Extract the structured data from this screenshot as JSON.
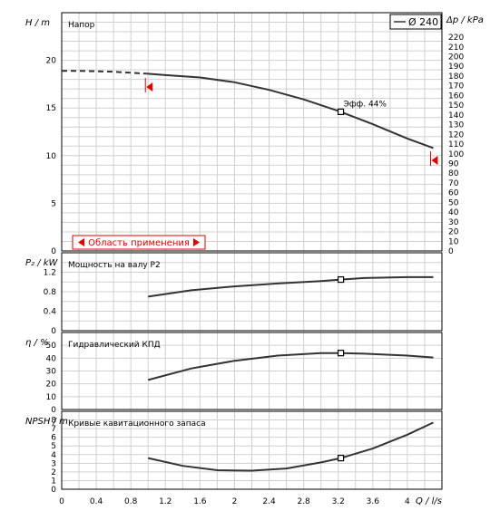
{
  "chart_data": [
    {
      "type": "line",
      "title": "Напор",
      "ylabel": "H / m",
      "y2label": "Δp / kPa",
      "legend": "Ø 240",
      "xlim": [
        0,
        4.4
      ],
      "ylim": [
        0,
        25
      ],
      "yticks": [
        "0",
        "5",
        "10",
        "15",
        "20"
      ],
      "y2ticks": [
        "0",
        "10",
        "20",
        "30",
        "40",
        "50",
        "60",
        "70",
        "80",
        "90",
        "100",
        "110",
        "120",
        "130",
        "140",
        "150",
        "160",
        "170",
        "180",
        "190",
        "200",
        "210",
        "220"
      ],
      "series": [
        {
          "style": "dashed",
          "x": [
            0,
            0.2,
            0.4,
            0.6,
            0.8,
            0.98
          ],
          "y": [
            18.9,
            18.9,
            18.85,
            18.8,
            18.7,
            18.6
          ]
        },
        {
          "style": "solid",
          "x": [
            0.98,
            1.2,
            1.6,
            2.0,
            2.4,
            2.8,
            3.2,
            3.6,
            4.0,
            4.3
          ],
          "y": [
            18.6,
            18.45,
            18.2,
            17.7,
            16.9,
            15.9,
            14.7,
            13.3,
            11.8,
            10.8
          ]
        }
      ],
      "operating_point": {
        "x": 3.23,
        "y": 14.6,
        "label": "Эфф. 44%"
      },
      "range_markers": [
        {
          "x": 1.0,
          "y": 17.2
        },
        {
          "x": 4.3,
          "y": 9.5
        }
      ],
      "annotation": "Область применения"
    },
    {
      "type": "line",
      "title": "Мощность на валу P2",
      "ylabel": "P₂ / kW",
      "ylim": [
        0,
        1.6
      ],
      "yticks": [
        "0",
        "0.4",
        "0.8",
        "1.2"
      ],
      "minor_step": 0.2,
      "series": [
        {
          "x": [
            1.0,
            1.5,
            2.0,
            2.5,
            3.0,
            3.23,
            3.5,
            4.0,
            4.3
          ],
          "y": [
            0.7,
            0.83,
            0.91,
            0.97,
            1.02,
            1.05,
            1.08,
            1.1,
            1.1
          ]
        }
      ],
      "operating_point": {
        "x": 3.23,
        "y": 1.05
      }
    },
    {
      "type": "line",
      "title": "Гидравлический КПД",
      "ylabel": "η / %",
      "ylim": [
        0,
        60
      ],
      "yticks": [
        "0",
        "10",
        "20",
        "30",
        "40",
        "50"
      ],
      "series": [
        {
          "x": [
            1.0,
            1.5,
            2.0,
            2.5,
            3.0,
            3.23,
            3.5,
            4.0,
            4.3
          ],
          "y": [
            23,
            32,
            38,
            42,
            44,
            44,
            43.5,
            42,
            40.5
          ]
        }
      ],
      "operating_point": {
        "x": 3.23,
        "y": 44
      }
    },
    {
      "type": "line",
      "title": "Кривые кавитационного запаса",
      "ylabel": "NPSH / m",
      "ylim": [
        0,
        9
      ],
      "yticks": [
        "0",
        "1",
        "2",
        "3",
        "4",
        "5",
        "6",
        "7",
        "8"
      ],
      "series": [
        {
          "x": [
            1.0,
            1.4,
            1.8,
            2.2,
            2.6,
            3.0,
            3.23,
            3.6,
            4.0,
            4.3
          ],
          "y": [
            3.6,
            2.7,
            2.2,
            2.15,
            2.4,
            3.1,
            3.6,
            4.7,
            6.3,
            7.7
          ]
        }
      ],
      "operating_point": {
        "x": 3.23,
        "y": 3.6
      }
    }
  ],
  "x_axis": {
    "label": "Q / l/s",
    "ticks": [
      "0",
      "0.4",
      "0.8",
      "1.2",
      "1.6",
      "2",
      "2.4",
      "2.8",
      "3.2",
      "3.6",
      "4"
    ]
  }
}
